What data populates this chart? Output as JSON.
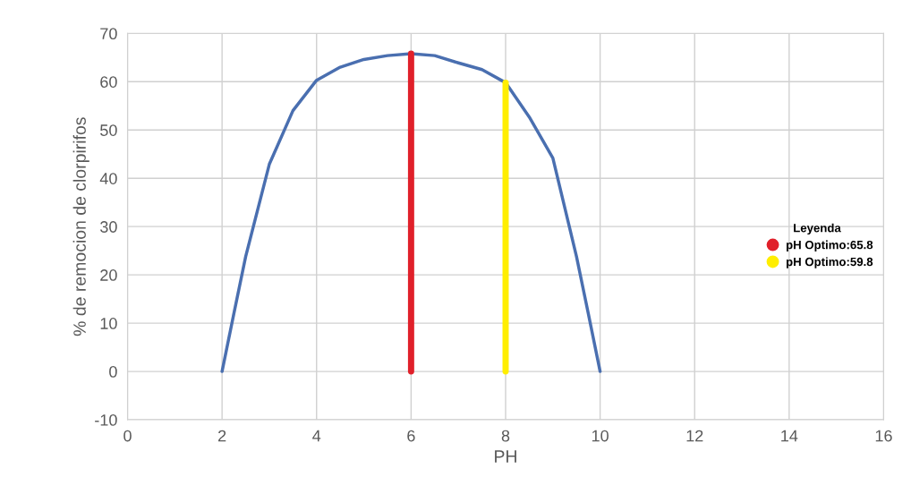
{
  "chart_data": {
    "type": "line",
    "xlabel": "PH",
    "ylabel": "% de remocion de clorpirifos",
    "legend_title": "Leyenda",
    "legend": "right",
    "grid": true,
    "xlim": [
      0,
      16
    ],
    "xticks": [
      0,
      2,
      4,
      6,
      8,
      10,
      12,
      14,
      16
    ],
    "ylim": [
      -10,
      70
    ],
    "yticks": [
      -10,
      0,
      10,
      20,
      30,
      40,
      50,
      60,
      70
    ],
    "series": [
      {
        "color": "#4a6fb0",
        "x": [
          2,
          2.25,
          2.5,
          3,
          3.5,
          4,
          4.5,
          5,
          5.5,
          6,
          6.5,
          7,
          7.5,
          8,
          8.5,
          9,
          9.5,
          9.75,
          10
        ],
        "values": [
          0,
          12,
          23.8,
          42.9,
          54,
          60.3,
          63,
          64.6,
          65.4,
          65.8,
          65.4,
          63.9,
          62.5,
          59.8,
          52.7,
          44.2,
          23.8,
          12,
          0
        ]
      },
      {
        "name": "pH Optimo:65.8",
        "color": "#e0202a",
        "x": [
          6,
          6
        ],
        "values": [
          0,
          65.8
        ]
      },
      {
        "name": "pH Optimo:59.8",
        "color": "#ffee00",
        "x": [
          8,
          8
        ],
        "values": [
          0,
          59.8
        ]
      }
    ]
  }
}
